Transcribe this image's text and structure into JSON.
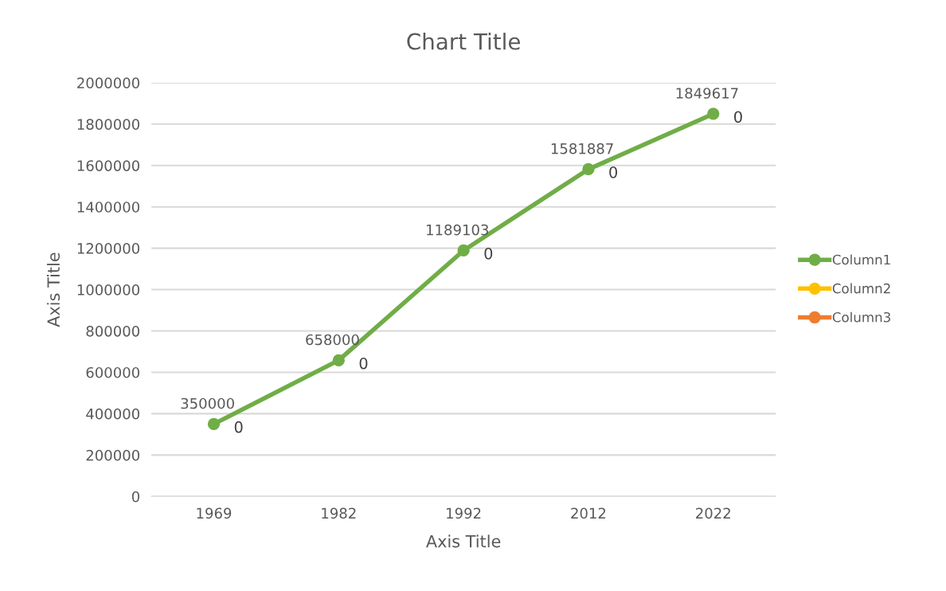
{
  "chart_data": {
    "type": "line",
    "title": "Chart Title",
    "xlabel": "Axis Title",
    "ylabel": "Axis Title",
    "categories": [
      "1969",
      "1982",
      "1992",
      "2012",
      "2022"
    ],
    "series": [
      {
        "name": "Column1",
        "color": "#70ad47",
        "values": [
          350000,
          658000,
          1189103,
          1581887,
          1849617
        ]
      },
      {
        "name": "Column2",
        "color": "#ffc000",
        "values": [
          null,
          null,
          null,
          null,
          null
        ]
      },
      {
        "name": "Column3",
        "color": "#ed7d31",
        "values": [
          null,
          null,
          null,
          null,
          null
        ]
      }
    ],
    "annotations": [
      {
        "text": "0",
        "x": "1969",
        "y": 350000
      },
      {
        "text": "0",
        "x": "1982",
        "y": 658000
      },
      {
        "text": "0",
        "x": "1992",
        "y": 1189103
      },
      {
        "text": "0",
        "x": "2012",
        "y": 1581887
      },
      {
        "text": "0",
        "x": "2022",
        "y": 1849617
      }
    ],
    "ylim": [
      0,
      2000000
    ],
    "yticks": [
      0,
      200000,
      400000,
      600000,
      800000,
      1000000,
      1200000,
      1400000,
      1600000,
      1800000,
      2000000
    ],
    "grid": "y",
    "legend": "right",
    "marker": "circle",
    "line_style": "solid",
    "data_labels": true
  }
}
